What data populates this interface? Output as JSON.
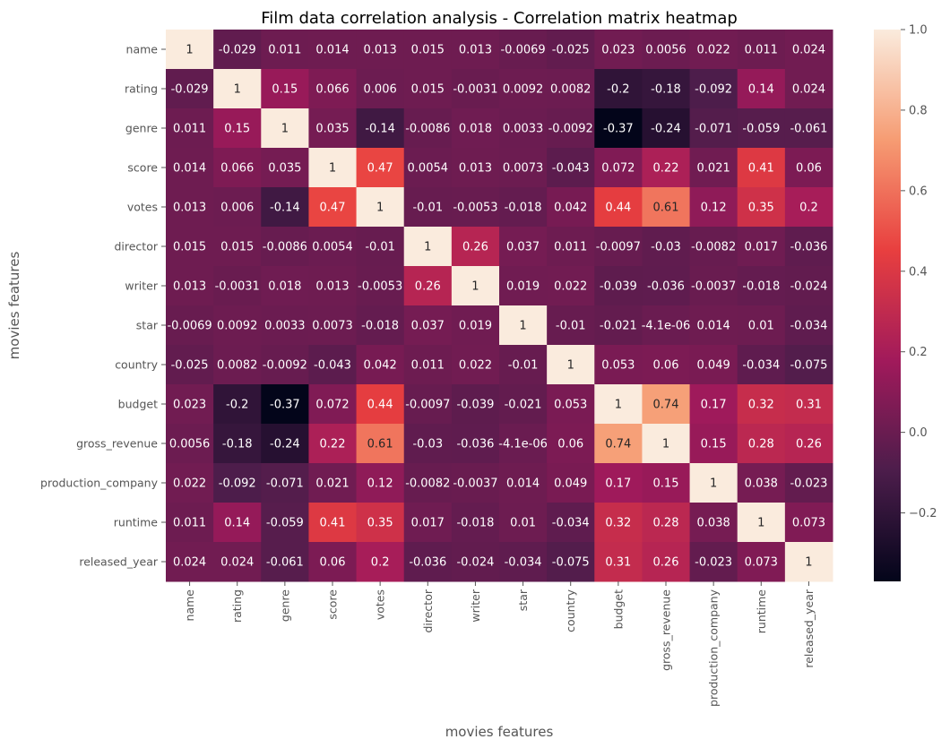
{
  "chart_data": {
    "type": "heatmap",
    "title": "Film data correlation analysis -  Correlation matrix heatmap",
    "xlabel": "movies features",
    "ylabel": "movies features",
    "rows": [
      "name",
      "rating",
      "genre",
      "score",
      "votes",
      "director",
      "writer",
      "star",
      "country",
      "budget",
      "gross_revenue",
      "production_company",
      "runtime",
      "released_year"
    ],
    "columns": [
      "name",
      "rating",
      "genre",
      "score",
      "votes",
      "director",
      "writer",
      "star",
      "country",
      "budget",
      "gross_revenue",
      "production_company",
      "runtime",
      "released_year"
    ],
    "values": [
      [
        1,
        -0.029,
        0.011,
        0.014,
        0.013,
        0.015,
        0.013,
        -0.0069,
        -0.025,
        0.023,
        0.0056,
        0.022,
        0.011,
        0.024
      ],
      [
        -0.029,
        1,
        0.15,
        0.066,
        0.006,
        0.015,
        -0.0031,
        0.0092,
        0.0082,
        -0.2,
        -0.18,
        -0.092,
        0.14,
        0.024
      ],
      [
        0.011,
        0.15,
        1,
        0.035,
        -0.14,
        -0.0086,
        0.018,
        0.0033,
        -0.0092,
        -0.37,
        -0.24,
        -0.071,
        -0.059,
        -0.061
      ],
      [
        0.014,
        0.066,
        0.035,
        1,
        0.47,
        0.0054,
        0.013,
        0.0073,
        -0.043,
        0.072,
        0.22,
        0.021,
        0.41,
        0.06
      ],
      [
        0.013,
        0.006,
        -0.14,
        0.47,
        1,
        -0.01,
        -0.0053,
        -0.018,
        0.042,
        0.44,
        0.61,
        0.12,
        0.35,
        0.2
      ],
      [
        0.015,
        0.015,
        -0.0086,
        0.0054,
        -0.01,
        1,
        0.26,
        0.037,
        0.011,
        -0.0097,
        -0.03,
        -0.0082,
        0.017,
        -0.036
      ],
      [
        0.013,
        -0.0031,
        0.018,
        0.013,
        -0.0053,
        0.26,
        1,
        0.019,
        0.022,
        -0.039,
        -0.036,
        -0.0037,
        -0.018,
        -0.024
      ],
      [
        -0.0069,
        0.0092,
        0.0033,
        0.0073,
        -0.018,
        0.037,
        0.019,
        1,
        -0.01,
        -0.021,
        -4.1e-06,
        0.014,
        0.01,
        -0.034
      ],
      [
        -0.025,
        0.0082,
        -0.0092,
        -0.043,
        0.042,
        0.011,
        0.022,
        -0.01,
        1,
        0.053,
        0.06,
        0.049,
        -0.034,
        -0.075
      ],
      [
        0.023,
        -0.2,
        -0.37,
        0.072,
        0.44,
        -0.0097,
        -0.039,
        -0.021,
        0.053,
        1,
        0.74,
        0.17,
        0.32,
        0.31
      ],
      [
        0.0056,
        -0.18,
        -0.24,
        0.22,
        0.61,
        -0.03,
        -0.036,
        -4.1e-06,
        0.06,
        0.74,
        1,
        0.15,
        0.28,
        0.26
      ],
      [
        0.022,
        -0.092,
        -0.071,
        0.021,
        0.12,
        -0.0082,
        -0.0037,
        0.014,
        0.049,
        0.17,
        0.15,
        1,
        0.038,
        -0.023
      ],
      [
        0.011,
        0.14,
        -0.059,
        0.41,
        0.35,
        0.017,
        -0.018,
        0.01,
        -0.034,
        0.32,
        0.28,
        0.038,
        1,
        0.073
      ],
      [
        0.024,
        0.024,
        -0.061,
        0.06,
        0.2,
        -0.036,
        -0.024,
        -0.034,
        -0.075,
        0.31,
        0.26,
        -0.023,
        0.073,
        1
      ]
    ],
    "cell_labels": [
      [
        "1",
        "-0.029",
        "0.011",
        "0.014",
        "0.013",
        "0.015",
        "0.013",
        "-0.0069",
        "-0.025",
        "0.023",
        "0.0056",
        "0.022",
        "0.011",
        "0.024"
      ],
      [
        "-0.029",
        "1",
        "0.15",
        "0.066",
        "0.006",
        "0.015",
        "-0.0031",
        "0.0092",
        "0.0082",
        "-0.2",
        "-0.18",
        "-0.092",
        "0.14",
        "0.024"
      ],
      [
        "0.011",
        "0.15",
        "1",
        "0.035",
        "-0.14",
        "-0.0086",
        "0.018",
        "0.0033",
        "-0.0092",
        "-0.37",
        "-0.24",
        "-0.071",
        "-0.059",
        "-0.061"
      ],
      [
        "0.014",
        "0.066",
        "0.035",
        "1",
        "0.47",
        "0.0054",
        "0.013",
        "0.0073",
        "-0.043",
        "0.072",
        "0.22",
        "0.021",
        "0.41",
        "0.06"
      ],
      [
        "0.013",
        "0.006",
        "-0.14",
        "0.47",
        "1",
        "-0.01",
        "-0.0053",
        "-0.018",
        "0.042",
        "0.44",
        "0.61",
        "0.12",
        "0.35",
        "0.2"
      ],
      [
        "0.015",
        "0.015",
        "-0.0086",
        "0.0054",
        "-0.01",
        "1",
        "0.26",
        "0.037",
        "0.011",
        "-0.0097",
        "-0.03",
        "-0.0082",
        "0.017",
        "-0.036"
      ],
      [
        "0.013",
        "-0.0031",
        "0.018",
        "0.013",
        "-0.0053",
        "0.26",
        "1",
        "0.019",
        "0.022",
        "-0.039",
        "-0.036",
        "-0.0037",
        "-0.018",
        "-0.024"
      ],
      [
        "-0.0069",
        "0.0092",
        "0.0033",
        "0.0073",
        "-0.018",
        "0.037",
        "0.019",
        "1",
        "-0.01",
        "-0.021",
        "-4.1e-06",
        "0.014",
        "0.01",
        "-0.034"
      ],
      [
        "-0.025",
        "0.0082",
        "-0.0092",
        "-0.043",
        "0.042",
        "0.011",
        "0.022",
        "-0.01",
        "1",
        "0.053",
        "0.06",
        "0.049",
        "-0.034",
        "-0.075"
      ],
      [
        "0.023",
        "-0.2",
        "-0.37",
        "0.072",
        "0.44",
        "-0.0097",
        "-0.039",
        "-0.021",
        "0.053",
        "1",
        "0.74",
        "0.17",
        "0.32",
        "0.31"
      ],
      [
        "0.0056",
        "-0.18",
        "-0.24",
        "0.22",
        "0.61",
        "-0.03",
        "-0.036",
        "-4.1e-06",
        "0.06",
        "0.74",
        "1",
        "0.15",
        "0.28",
        "0.26"
      ],
      [
        "0.022",
        "-0.092",
        "-0.071",
        "0.021",
        "0.12",
        "-0.0082",
        "-0.0037",
        "0.014",
        "0.049",
        "0.17",
        "0.15",
        "1",
        "0.038",
        "-0.023"
      ],
      [
        "0.011",
        "0.14",
        "-0.059",
        "0.41",
        "0.35",
        "0.017",
        "-0.018",
        "0.01",
        "-0.034",
        "0.32",
        "0.28",
        "0.038",
        "1",
        "0.073"
      ],
      [
        "0.024",
        "0.024",
        "-0.061",
        "0.06",
        "0.2",
        "-0.036",
        "-0.024",
        "-0.034",
        "-0.075",
        "0.31",
        "0.26",
        "-0.023",
        "0.073",
        "1"
      ]
    ],
    "colorbar": {
      "range": [
        -0.37,
        1.0
      ],
      "ticks": [
        -0.2,
        0.0,
        0.2,
        0.4,
        0.6,
        0.8,
        1.0
      ],
      "tick_labels": [
        "−0.2",
        "0.0",
        "0.2",
        "0.4",
        "0.6",
        "0.8",
        "1.0"
      ],
      "colormap": "rocket",
      "colormap_stops": [
        "#03051a",
        "#4c1d4b",
        "#a11a5b",
        "#e83f3f",
        "#f69c73",
        "#faebdd"
      ]
    },
    "grid": false,
    "legend": "right"
  }
}
